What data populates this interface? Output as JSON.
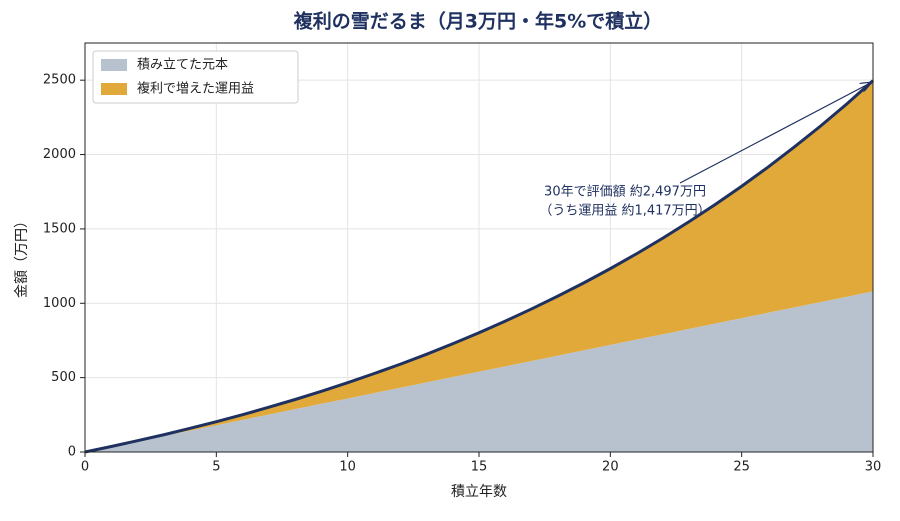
{
  "chart_data": {
    "type": "stacked_area",
    "title": "複利の雪だるま（月3万円・年5%で積立）",
    "x_label": "積立年数",
    "y_label": "金額（万円）",
    "x": [
      0,
      1,
      2,
      3,
      4,
      5,
      6,
      7,
      8,
      9,
      10,
      11,
      12,
      13,
      14,
      15,
      16,
      17,
      18,
      19,
      20,
      21,
      22,
      23,
      24,
      25,
      26,
      27,
      28,
      29,
      30
    ],
    "series": [
      {
        "name": "積み立てた元本",
        "color": "#b8c2cf",
        "values": [
          0,
          36,
          72,
          108,
          144,
          180,
          216,
          252,
          288,
          324,
          360,
          396,
          432,
          468,
          504,
          540,
          576,
          612,
          648,
          684,
          720,
          756,
          792,
          828,
          864,
          900,
          936,
          972,
          1008,
          1044,
          1080
        ]
      },
      {
        "name": "複利で増えた運用益",
        "color": "#e0a93a",
        "values": [
          0,
          1,
          4,
          8,
          15,
          24,
          35,
          49,
          65,
          84,
          106,
          131,
          158,
          189,
          224,
          262,
          304,
          350,
          400,
          454,
          513,
          577,
          646,
          721,
          801,
          887,
          979,
          1078,
          1183,
          1296,
          1417
        ]
      }
    ],
    "line_color": "#1f3160",
    "annotation": [
      "30年で評価額 約2,497万円",
      "（うち運用益 約1,417万円）"
    ],
    "xlim": [
      0,
      30
    ],
    "xticks": [
      0,
      5,
      10,
      15,
      20,
      25,
      30
    ],
    "ylim": [
      0,
      2750
    ],
    "yticks": [
      0,
      500,
      1000,
      1500,
      2000,
      2500
    ],
    "grid": true,
    "legend": "upper-left"
  }
}
